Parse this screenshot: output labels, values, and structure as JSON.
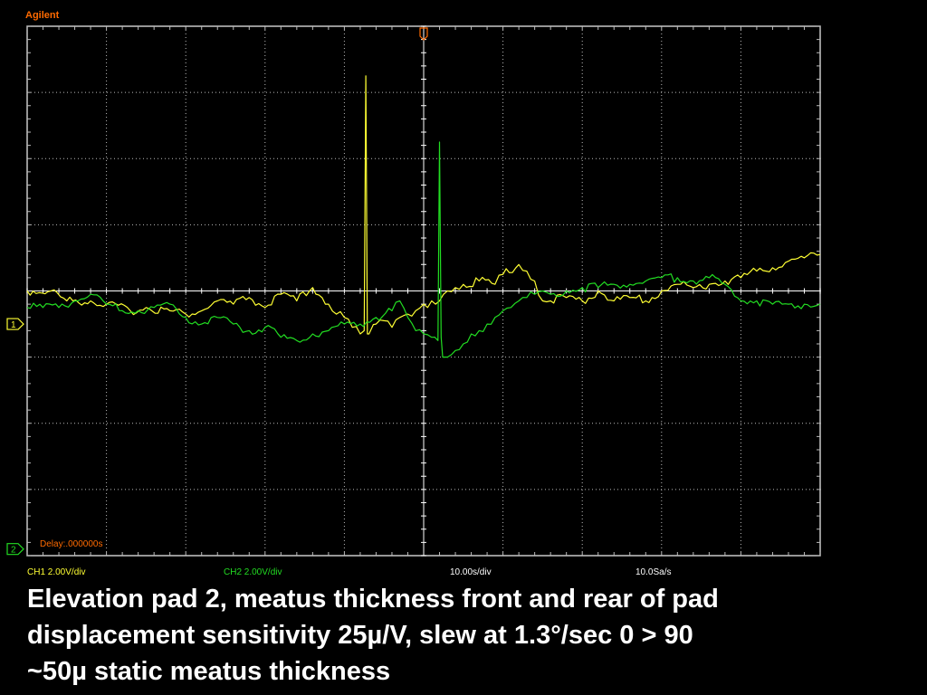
{
  "brand": "Agilent",
  "colors": {
    "brand": "#ff6a00",
    "ch1": "#ffff33",
    "ch2": "#22dd22",
    "grid": "#ffffff",
    "background": "#000000"
  },
  "status": {
    "ch1": "CH1 2.00V/div",
    "ch2": "CH2 2.00V/div",
    "timebase": "10.00s/div",
    "sample_rate": "10.0Sa/s"
  },
  "caption": [
    "Elevation pad 2, meatus thickness front and rear of pad",
    "displacement sensitivity 25µ/V, slew at 1.3°/sec 0 > 90",
    "~50µ static meatus thickness"
  ],
  "chart_data": {
    "type": "line",
    "title": "",
    "xlabel": "",
    "ylabel": "",
    "grid": true,
    "grid_divisions": {
      "x": 10,
      "y": 8
    },
    "xlim": [
      -50,
      50
    ],
    "ylim": [
      -8,
      8
    ],
    "markers": {
      "ch1_ground": "1",
      "ch2_ground": "2",
      "delay_label": "Delay:.000000s"
    },
    "series": [
      {
        "name": "CH1",
        "channel": "1",
        "x": [
          -50,
          -47,
          -45,
          -42,
          -40,
          -37,
          -35,
          -32,
          -30,
          -28,
          -26,
          -24,
          -22,
          -20,
          -18,
          -16,
          -14,
          -12,
          -11,
          -10,
          -9,
          -8,
          -7.5,
          -7.3,
          -7.1,
          -6.9,
          -6.7,
          -6,
          -5,
          -4,
          -3,
          -2,
          -1,
          0,
          0.5,
          1,
          1.5,
          2,
          2.5,
          3,
          4,
          5,
          7,
          9,
          10,
          12,
          13,
          14,
          15,
          16,
          18,
          20,
          22,
          24,
          26,
          28,
          30,
          32,
          34,
          36,
          38,
          40,
          42,
          44,
          46,
          48,
          50
        ],
        "y": [
          0,
          0,
          -0.3,
          -0.3,
          -0.4,
          -0.6,
          -0.5,
          -0.6,
          -0.7,
          -0.6,
          -0.3,
          -0.4,
          -0.2,
          -0.5,
          -0.1,
          -0.3,
          0.1,
          -0.4,
          -0.7,
          -0.8,
          -1.1,
          -1.3,
          -1.2,
          6.5,
          -1.3,
          -1.3,
          -1.2,
          -1,
          -0.9,
          -1.1,
          -0.8,
          -0.7,
          -0.6,
          -0.4,
          -0.5,
          -0.3,
          -0.4,
          -0.3,
          -0.1,
          0,
          0.1,
          0.2,
          0.3,
          0.2,
          0.5,
          0.8,
          0.6,
          0.3,
          -0.3,
          -0.3,
          -0.2,
          -0.3,
          0,
          -0.3,
          -0.2,
          -0.3,
          0,
          0.2,
          0.1,
          0.2,
          0.3,
          0.4,
          0.6,
          0.7,
          0.9,
          1,
          1.1
        ]
      },
      {
        "name": "CH2",
        "channel": "2",
        "x": [
          -50,
          -48,
          -46,
          -44,
          -42,
          -40,
          -38,
          -36,
          -34,
          -32,
          -30,
          -28,
          -26,
          -24,
          -22,
          -20,
          -18,
          -16,
          -14,
          -12,
          -10,
          -8,
          -6,
          -4,
          -3,
          -2,
          -1,
          0,
          1,
          1.8,
          2,
          2.2,
          2.4,
          3,
          4,
          5,
          6,
          7,
          8,
          9,
          10,
          11,
          12,
          13,
          14,
          15,
          16,
          18,
          20,
          22,
          24,
          26,
          28,
          30,
          32,
          34,
          36,
          38,
          40,
          42,
          44,
          46,
          48,
          50
        ],
        "y": [
          -0.5,
          -0.5,
          -0.5,
          -0.3,
          -0.1,
          -0.4,
          -0.6,
          -0.6,
          -0.5,
          -0.4,
          -0.8,
          -1,
          -0.8,
          -1,
          -1.2,
          -1.1,
          -1.4,
          -1.5,
          -1.3,
          -1.2,
          -1,
          -1,
          -0.8,
          -0.6,
          -0.3,
          -0.8,
          -1.2,
          -1.3,
          -1.4,
          -1.5,
          4.5,
          -1.4,
          -2,
          -2,
          -1.8,
          -1.6,
          -1.3,
          -1.2,
          -1,
          -0.8,
          -0.6,
          -0.5,
          -0.3,
          -0.2,
          -0.1,
          0,
          -0.1,
          0,
          0.1,
          0.1,
          0.2,
          0.2,
          0.3,
          0.4,
          0.4,
          0.3,
          0.4,
          0.2,
          -0.3,
          -0.3,
          -0.4,
          -0.4,
          -0.4,
          -0.4
        ]
      }
    ]
  }
}
